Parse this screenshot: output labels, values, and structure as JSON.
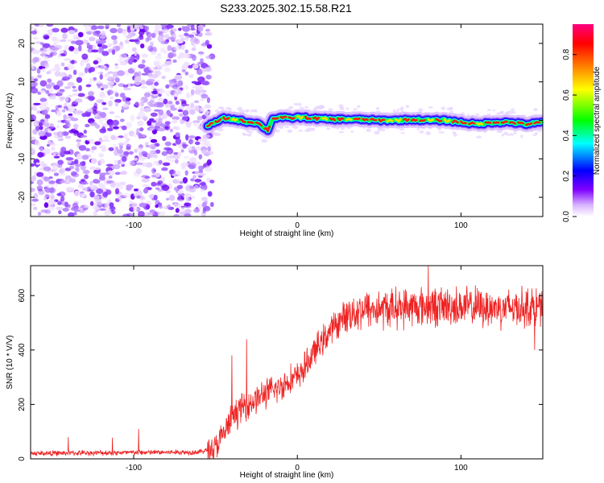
{
  "title": "S233.2025.302.15.58.R21",
  "chart_data": [
    {
      "type": "heatmap",
      "name": "spectrogram",
      "xlabel": "Height of straight line (km)",
      "ylabel": "Frequency (Hz)",
      "xlim": [
        -163,
        150
      ],
      "ylim": [
        -25,
        25
      ],
      "xticks": [
        -100,
        0,
        100
      ],
      "xtick_labels": [
        "-100",
        "0",
        "100"
      ],
      "yticks": [
        -20,
        -10,
        0,
        10,
        20
      ],
      "ytick_labels": [
        "-20",
        "-10",
        "0",
        "10",
        "20"
      ],
      "colorbar": {
        "label": "Normalized spectral amplitude",
        "range": [
          0,
          0.95
        ],
        "ticks": [
          0.0,
          0.2,
          0.4,
          0.6,
          0.8
        ],
        "tick_labels": [
          "0.0",
          "0.2",
          "0.4",
          "0.6",
          "0.8"
        ],
        "colors": [
          "#ffffff",
          "#7f00ff",
          "#0000ff",
          "#00ffff",
          "#00ff00",
          "#ffff00",
          "#ff8000",
          "#ff0000",
          "#ff0080"
        ]
      },
      "noise_region_end_km": -55,
      "ridge": {
        "x": [
          -55,
          -50,
          -45,
          -40,
          -35,
          -30,
          -25,
          -20,
          -18,
          -15,
          -10,
          -5,
          0,
          5,
          10,
          20,
          30,
          40,
          50,
          60,
          70,
          80,
          90,
          100,
          110,
          120,
          130,
          140,
          150
        ],
        "freq": [
          -1.5,
          -0.5,
          0.5,
          0.3,
          0.0,
          -0.5,
          -0.5,
          -2.0,
          -2.5,
          0.5,
          0.8,
          0.5,
          0.8,
          0.7,
          0.5,
          0.3,
          0.3,
          0.2,
          0.0,
          0.0,
          0.2,
          0.0,
          0.0,
          -0.5,
          -1.0,
          -0.5,
          -0.5,
          -1.0,
          -0.5
        ]
      }
    },
    {
      "type": "line",
      "name": "snr",
      "xlabel": "Height of straight line (km)",
      "ylabel": "SNR (10 * V/V)",
      "xlim": [
        -163,
        150
      ],
      "ylim": [
        0,
        710
      ],
      "xticks": [
        -100,
        0,
        100
      ],
      "xtick_labels": [
        "-100",
        "0",
        "100"
      ],
      "yticks": [
        0,
        200,
        400,
        600
      ],
      "ytick_labels": [
        "0",
        "200",
        "400",
        "600"
      ],
      "color": "#ee2222",
      "trend": {
        "x": [
          -163,
          -60,
          -50,
          -45,
          -40,
          -35,
          -30,
          -25,
          -20,
          -15,
          -10,
          -5,
          0,
          5,
          10,
          15,
          20,
          25,
          30,
          40,
          50,
          60,
          80,
          100,
          120,
          150
        ],
        "y": [
          20,
          25,
          40,
          90,
          150,
          185,
          200,
          220,
          240,
          250,
          265,
          290,
          300,
          340,
          390,
          430,
          470,
          500,
          530,
          550,
          550,
          555,
          560,
          560,
          555,
          560
        ]
      },
      "spikes": [
        {
          "x": -140,
          "y": 80
        },
        {
          "x": -113,
          "y": 78
        },
        {
          "x": -97,
          "y": 110
        },
        {
          "x": -40,
          "y": 380
        },
        {
          "x": -31,
          "y": 440
        },
        {
          "x": 80,
          "y": 710
        },
        {
          "x": 145,
          "y": 400
        }
      ]
    }
  ]
}
